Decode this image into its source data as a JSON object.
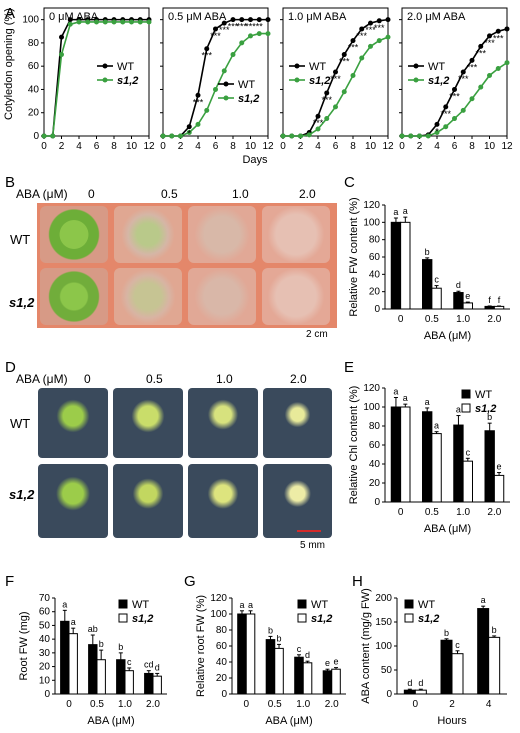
{
  "panel_letters": [
    "A",
    "B",
    "C",
    "D",
    "E",
    "F",
    "G",
    "H"
  ],
  "colors": {
    "wt": "#000000",
    "s12": "#3aa040",
    "bar_wt": "#000000",
    "bar_s12": "#ffffff",
    "plate_bg": "#e4876a",
    "seedling_bg": "#3a4a5c",
    "plant": "#9ccc4a",
    "scalebar": "#d42a2a"
  },
  "panel_A": {
    "ylabel": "Cotyledon opening (%)",
    "xlabel": "Days",
    "legend": [
      "WT",
      "s1,2"
    ],
    "yticks": [
      0,
      20,
      40,
      60,
      80,
      100
    ],
    "xticks": [
      0,
      2,
      4,
      6,
      8,
      10,
      12
    ],
    "subtitles": [
      "0 μM ABA",
      "0.5 μM ABA",
      "1.0 μM ABA",
      "2.0 μM ABA"
    ]
  },
  "panel_B": {
    "aba_label": "ABA (μM)",
    "concentrations": [
      "0",
      "0.5",
      "1.0",
      "2.0"
    ],
    "rows": [
      "WT",
      "s1,2"
    ],
    "scale": "2 cm"
  },
  "panel_D": {
    "aba_label": "ABA (μM)",
    "concentrations": [
      "0",
      "0.5",
      "1.0",
      "2.0"
    ],
    "rows": [
      "WT",
      "s1,2"
    ],
    "scale": "5 mm"
  },
  "chart_data": [
    {
      "id": "A1",
      "type": "line",
      "title": "0 μM ABA",
      "xlabel": "Days",
      "ylabel": "Cotyledon opening (%)",
      "xlim": [
        0,
        12
      ],
      "ylim": [
        0,
        110
      ],
      "series": [
        {
          "name": "WT",
          "x": [
            0,
            1,
            2,
            3,
            4,
            5,
            6,
            7,
            8,
            9,
            10,
            11,
            12
          ],
          "y": [
            0,
            0,
            85,
            100,
            100,
            100,
            100,
            100,
            100,
            100,
            100,
            100,
            100
          ]
        },
        {
          "name": "s1,2",
          "x": [
            0,
            1,
            2,
            3,
            4,
            5,
            6,
            7,
            8,
            9,
            10,
            11,
            12
          ],
          "y": [
            0,
            0,
            70,
            96,
            98,
            98,
            98,
            98,
            98,
            98,
            98,
            98,
            98
          ]
        }
      ],
      "legend": "center-right",
      "annotations": []
    },
    {
      "id": "A2",
      "type": "line",
      "title": "0.5 μM ABA",
      "xlabel": "Days",
      "xlim": [
        0,
        12
      ],
      "ylim": [
        0,
        110
      ],
      "series": [
        {
          "name": "WT",
          "x": [
            0,
            1,
            2,
            3,
            4,
            5,
            6,
            7,
            8,
            9,
            10,
            11,
            12
          ],
          "y": [
            0,
            0,
            0,
            8,
            35,
            75,
            92,
            97,
            100,
            100,
            100,
            100,
            100
          ]
        },
        {
          "name": "s1,2",
          "x": [
            0,
            1,
            2,
            3,
            4,
            5,
            6,
            7,
            8,
            9,
            10,
            11,
            12
          ],
          "y": [
            0,
            0,
            0,
            3,
            10,
            22,
            40,
            56,
            70,
            80,
            86,
            88,
            88
          ]
        }
      ],
      "legend": "center-right",
      "annotations": [
        {
          "x": 3,
          "y": 8,
          "text": "*"
        },
        {
          "x": 4,
          "y": 35,
          "text": "***"
        },
        {
          "x": 5,
          "y": 75,
          "text": "***"
        },
        {
          "x": 6,
          "y": 92,
          "text": "***"
        },
        {
          "x": 7,
          "y": 97,
          "text": "***"
        },
        {
          "x": 8,
          "y": 100,
          "text": "***"
        },
        {
          "x": 9,
          "y": 100,
          "text": "***"
        },
        {
          "x": 10,
          "y": 100,
          "text": "***"
        },
        {
          "x": 11,
          "y": 100,
          "text": "**"
        }
      ]
    },
    {
      "id": "A3",
      "type": "line",
      "title": "1.0 μM ABA",
      "xlabel": "Days",
      "xlim": [
        0,
        12
      ],
      "ylim": [
        0,
        110
      ],
      "series": [
        {
          "name": "WT",
          "x": [
            0,
            1,
            2,
            3,
            4,
            5,
            6,
            7,
            8,
            9,
            10,
            11,
            12
          ],
          "y": [
            0,
            0,
            0,
            3,
            17,
            37,
            55,
            70,
            82,
            92,
            97,
            99,
            100
          ]
        },
        {
          "name": "s1,2",
          "x": [
            0,
            1,
            2,
            3,
            4,
            5,
            6,
            7,
            8,
            9,
            10,
            11,
            12
          ],
          "y": [
            0,
            0,
            0,
            1,
            6,
            15,
            25,
            38,
            52,
            67,
            77,
            82,
            85
          ]
        }
      ],
      "legend": "center-left",
      "annotations": [
        {
          "x": 4,
          "y": 17,
          "text": "***"
        },
        {
          "x": 5,
          "y": 37,
          "text": "***"
        },
        {
          "x": 6,
          "y": 55,
          "text": "***"
        },
        {
          "x": 7,
          "y": 70,
          "text": "***"
        },
        {
          "x": 8,
          "y": 82,
          "text": "***"
        },
        {
          "x": 9,
          "y": 92,
          "text": "***"
        },
        {
          "x": 10,
          "y": 97,
          "text": "***"
        },
        {
          "x": 11,
          "y": 99,
          "text": "***"
        }
      ]
    },
    {
      "id": "A4",
      "type": "line",
      "title": "2.0 μM ABA",
      "xlabel": "Days",
      "xlim": [
        0,
        12
      ],
      "ylim": [
        0,
        110
      ],
      "series": [
        {
          "name": "WT",
          "x": [
            0,
            1,
            2,
            3,
            4,
            5,
            6,
            7,
            8,
            9,
            10,
            11,
            12
          ],
          "y": [
            0,
            0,
            0,
            1,
            10,
            25,
            40,
            55,
            65,
            77,
            86,
            90,
            92
          ]
        },
        {
          "name": "s1,2",
          "x": [
            0,
            1,
            2,
            3,
            4,
            5,
            6,
            7,
            8,
            9,
            10,
            11,
            12
          ],
          "y": [
            0,
            0,
            0,
            0,
            3,
            8,
            15,
            22,
            32,
            42,
            52,
            58,
            63
          ]
        }
      ],
      "legend": "center-left",
      "annotations": [
        {
          "x": 4,
          "y": 10,
          "text": "*"
        },
        {
          "x": 5,
          "y": 25,
          "text": "***"
        },
        {
          "x": 6,
          "y": 40,
          "text": "***"
        },
        {
          "x": 7,
          "y": 55,
          "text": "***"
        },
        {
          "x": 8,
          "y": 65,
          "text": "***"
        },
        {
          "x": 9,
          "y": 77,
          "text": "***"
        },
        {
          "x": 10,
          "y": 86,
          "text": "***"
        },
        {
          "x": 11,
          "y": 90,
          "text": "***"
        }
      ]
    },
    {
      "id": "C",
      "type": "bar",
      "xlabel": "ABA  (μM)",
      "ylabel": "Relative FW content (%)",
      "categories": [
        "0",
        "0.5",
        "1.0",
        "2.0"
      ],
      "ylim": [
        0,
        120
      ],
      "yticks": [
        0,
        20,
        40,
        60,
        80,
        100,
        120
      ],
      "series": [
        {
          "name": "WT",
          "values": [
            100,
            57,
            19,
            3
          ],
          "err": [
            5,
            2,
            1.5,
            0.5
          ],
          "letters": [
            "a",
            "b",
            "d",
            "f"
          ]
        },
        {
          "name": "s1,2",
          "values": [
            100,
            24,
            7,
            3
          ],
          "err": [
            6,
            3,
            1,
            0.5
          ],
          "letters": [
            "a",
            "c",
            "e",
            "f"
          ]
        }
      ],
      "legend": ""
    },
    {
      "id": "E",
      "type": "bar",
      "xlabel": "ABA  (μM)",
      "ylabel": "Relative Chl content (%)",
      "categories": [
        "0",
        "0.5",
        "1.0",
        "2.0"
      ],
      "ylim": [
        0,
        120
      ],
      "yticks": [
        0,
        20,
        40,
        60,
        80,
        100,
        120
      ],
      "series": [
        {
          "name": "WT",
          "values": [
            100,
            95,
            81,
            75
          ],
          "err": [
            10,
            4,
            10,
            8
          ],
          "letters": [
            "a",
            "a",
            "a",
            "b"
          ]
        },
        {
          "name": "s1,2",
          "values": [
            100,
            72,
            43,
            28
          ],
          "err": [
            3,
            2,
            3,
            3
          ],
          "letters": [
            "a",
            "a",
            "c",
            "e"
          ]
        }
      ],
      "legend": "top-right"
    },
    {
      "id": "F",
      "type": "bar",
      "xlabel": "ABA  (μM)",
      "ylabel": "Root FW (mg)",
      "categories": [
        "0",
        "0.5",
        "1.0",
        "2.0"
      ],
      "ylim": [
        0,
        70
      ],
      "yticks": [
        0,
        10,
        20,
        30,
        40,
        50,
        60,
        70
      ],
      "series": [
        {
          "name": "WT",
          "values": [
            53,
            36,
            25,
            15
          ],
          "err": [
            8,
            7,
            5,
            2
          ],
          "letters": [
            "a",
            "ab",
            "b",
            "cd"
          ]
        },
        {
          "name": "s1,2",
          "values": [
            44,
            25,
            17,
            13
          ],
          "err": [
            4,
            7,
            2,
            2
          ],
          "letters": [
            "a",
            "b",
            "c",
            "d"
          ]
        }
      ],
      "legend": "top-right"
    },
    {
      "id": "G",
      "type": "bar",
      "xlabel": "ABA  (μM)",
      "ylabel": "Relative root FW (%)",
      "categories": [
        "0",
        "0.5",
        "1.0",
        "2.0"
      ],
      "ylim": [
        0,
        120
      ],
      "yticks": [
        0,
        20,
        40,
        60,
        80,
        100,
        120
      ],
      "series": [
        {
          "name": "WT",
          "values": [
            100,
            68,
            46,
            29
          ],
          "err": [
            4,
            4,
            3,
            2
          ],
          "letters": [
            "a",
            "b",
            "c",
            "e"
          ]
        },
        {
          "name": "s1,2",
          "values": [
            100,
            57,
            39,
            31
          ],
          "err": [
            4,
            5,
            2,
            2
          ],
          "letters": [
            "a",
            "b",
            "d",
            "e"
          ]
        }
      ],
      "legend": "top-right"
    },
    {
      "id": "H",
      "type": "bar",
      "xlabel": "Hours",
      "ylabel": "ABA content (mg/g  FW)",
      "categories": [
        "0",
        "2",
        "4"
      ],
      "ylim": [
        0,
        200
      ],
      "yticks": [
        0,
        50,
        100,
        150,
        200
      ],
      "series": [
        {
          "name": "WT",
          "values": [
            8,
            112,
            178
          ],
          "err": [
            2,
            3,
            5
          ],
          "letters": [
            "d",
            "b",
            "a"
          ]
        },
        {
          "name": "s1,2",
          "values": [
            8,
            84,
            118
          ],
          "err": [
            2,
            6,
            3
          ],
          "letters": [
            "d",
            "c",
            "b"
          ]
        }
      ],
      "legend": "top-left"
    }
  ]
}
